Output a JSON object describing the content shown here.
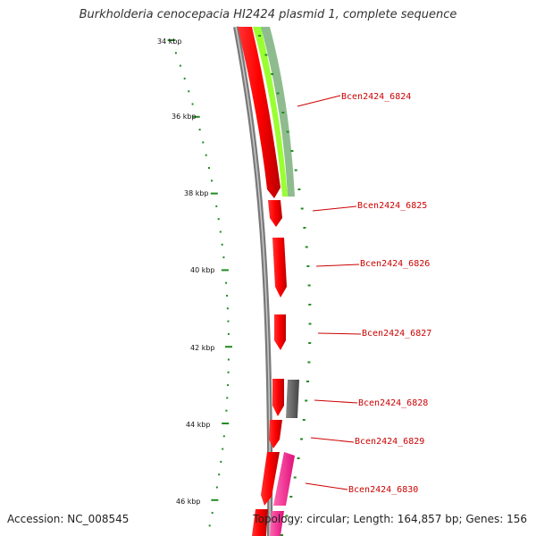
{
  "title": "Burkholderia cenocepacia HI2424 plasmid 1, complete sequence",
  "accession": "Accession: NC_008545",
  "summary": "Topology: circular; Length: 164,857 bp; Genes: 156",
  "scale_labels": [
    "34 kbp",
    "36 kbp",
    "38 kbp",
    "40 kbp",
    "42 kbp",
    "44 kbp",
    "46 kbp"
  ],
  "gene_labels": [
    "Bcen2424_6824",
    "Bcen2424_6825",
    "Bcen2424_6826",
    "Bcen2424_6827",
    "Bcen2424_6828",
    "Bcen2424_6829",
    "Bcen2424_6830"
  ],
  "colors": {
    "backbone": "#888888",
    "cds": "#ff0000",
    "ticks": "#228b22",
    "labels": "#cc0000",
    "lime": "#99ff33",
    "sage": "#8fbc8f",
    "cyan": "#00e5ee",
    "magenta": "#ff1493",
    "dark_gray": "#666666"
  }
}
